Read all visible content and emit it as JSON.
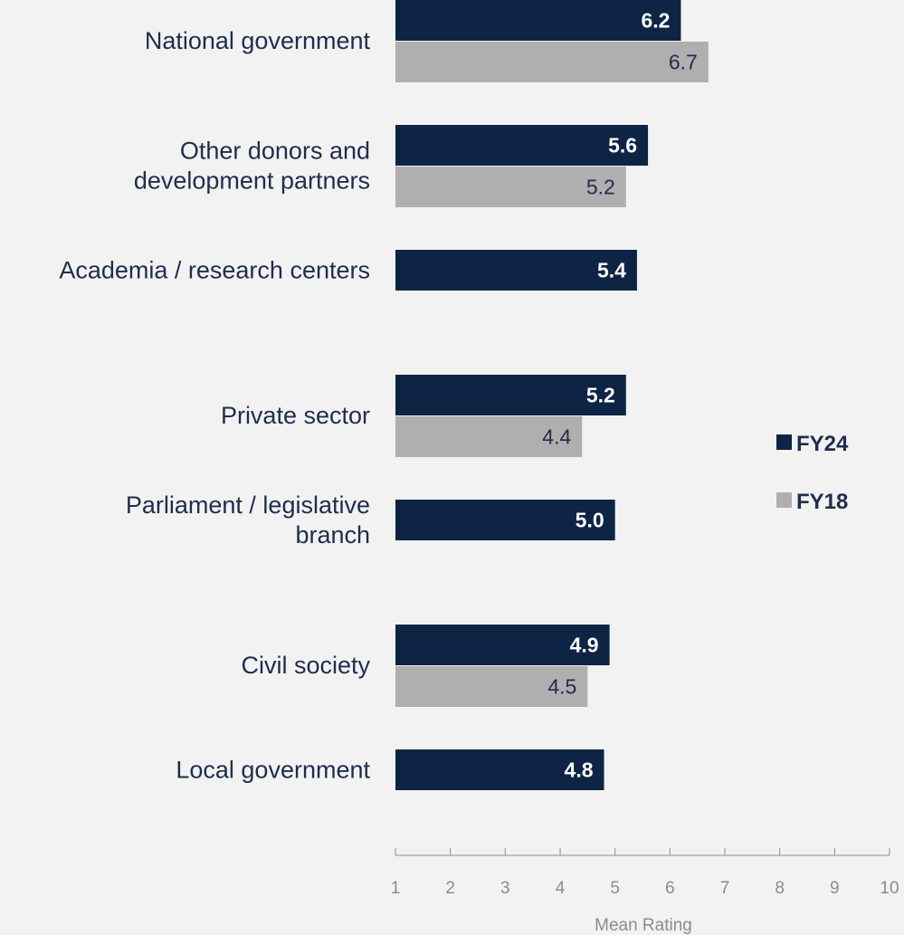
{
  "chart_data": {
    "type": "bar",
    "orientation": "horizontal",
    "categories": [
      [
        "National government"
      ],
      [
        "Other donors and",
        "development partners"
      ],
      [
        "Academia / research centers"
      ],
      [
        "Private sector"
      ],
      [
        "Parliament / legislative",
        "branch"
      ],
      [
        "Civil society"
      ],
      [
        "Local government"
      ]
    ],
    "series": [
      {
        "name": "FY24",
        "color": "#0e2445",
        "values": [
          6.2,
          5.6,
          5.4,
          5.2,
          5.0,
          4.9,
          4.8
        ],
        "labels": [
          "6.2",
          "5.6",
          "5.4",
          "5.2",
          "5.0",
          "4.9",
          "4.8"
        ]
      },
      {
        "name": "FY18",
        "color": "#b0aeae",
        "values": [
          6.7,
          5.2,
          null,
          4.4,
          null,
          4.5,
          null
        ],
        "labels": [
          "6.7",
          "5.2",
          "",
          "4.4",
          "",
          "4.5",
          ""
        ]
      }
    ],
    "xlim": [
      1,
      10
    ],
    "xticks": [
      "1",
      "2",
      "3",
      "4",
      "5",
      "6",
      "7",
      "8",
      "9",
      "10"
    ],
    "xlabel": "Mean Rating",
    "title": "",
    "legend_position": "right",
    "grid": false
  }
}
